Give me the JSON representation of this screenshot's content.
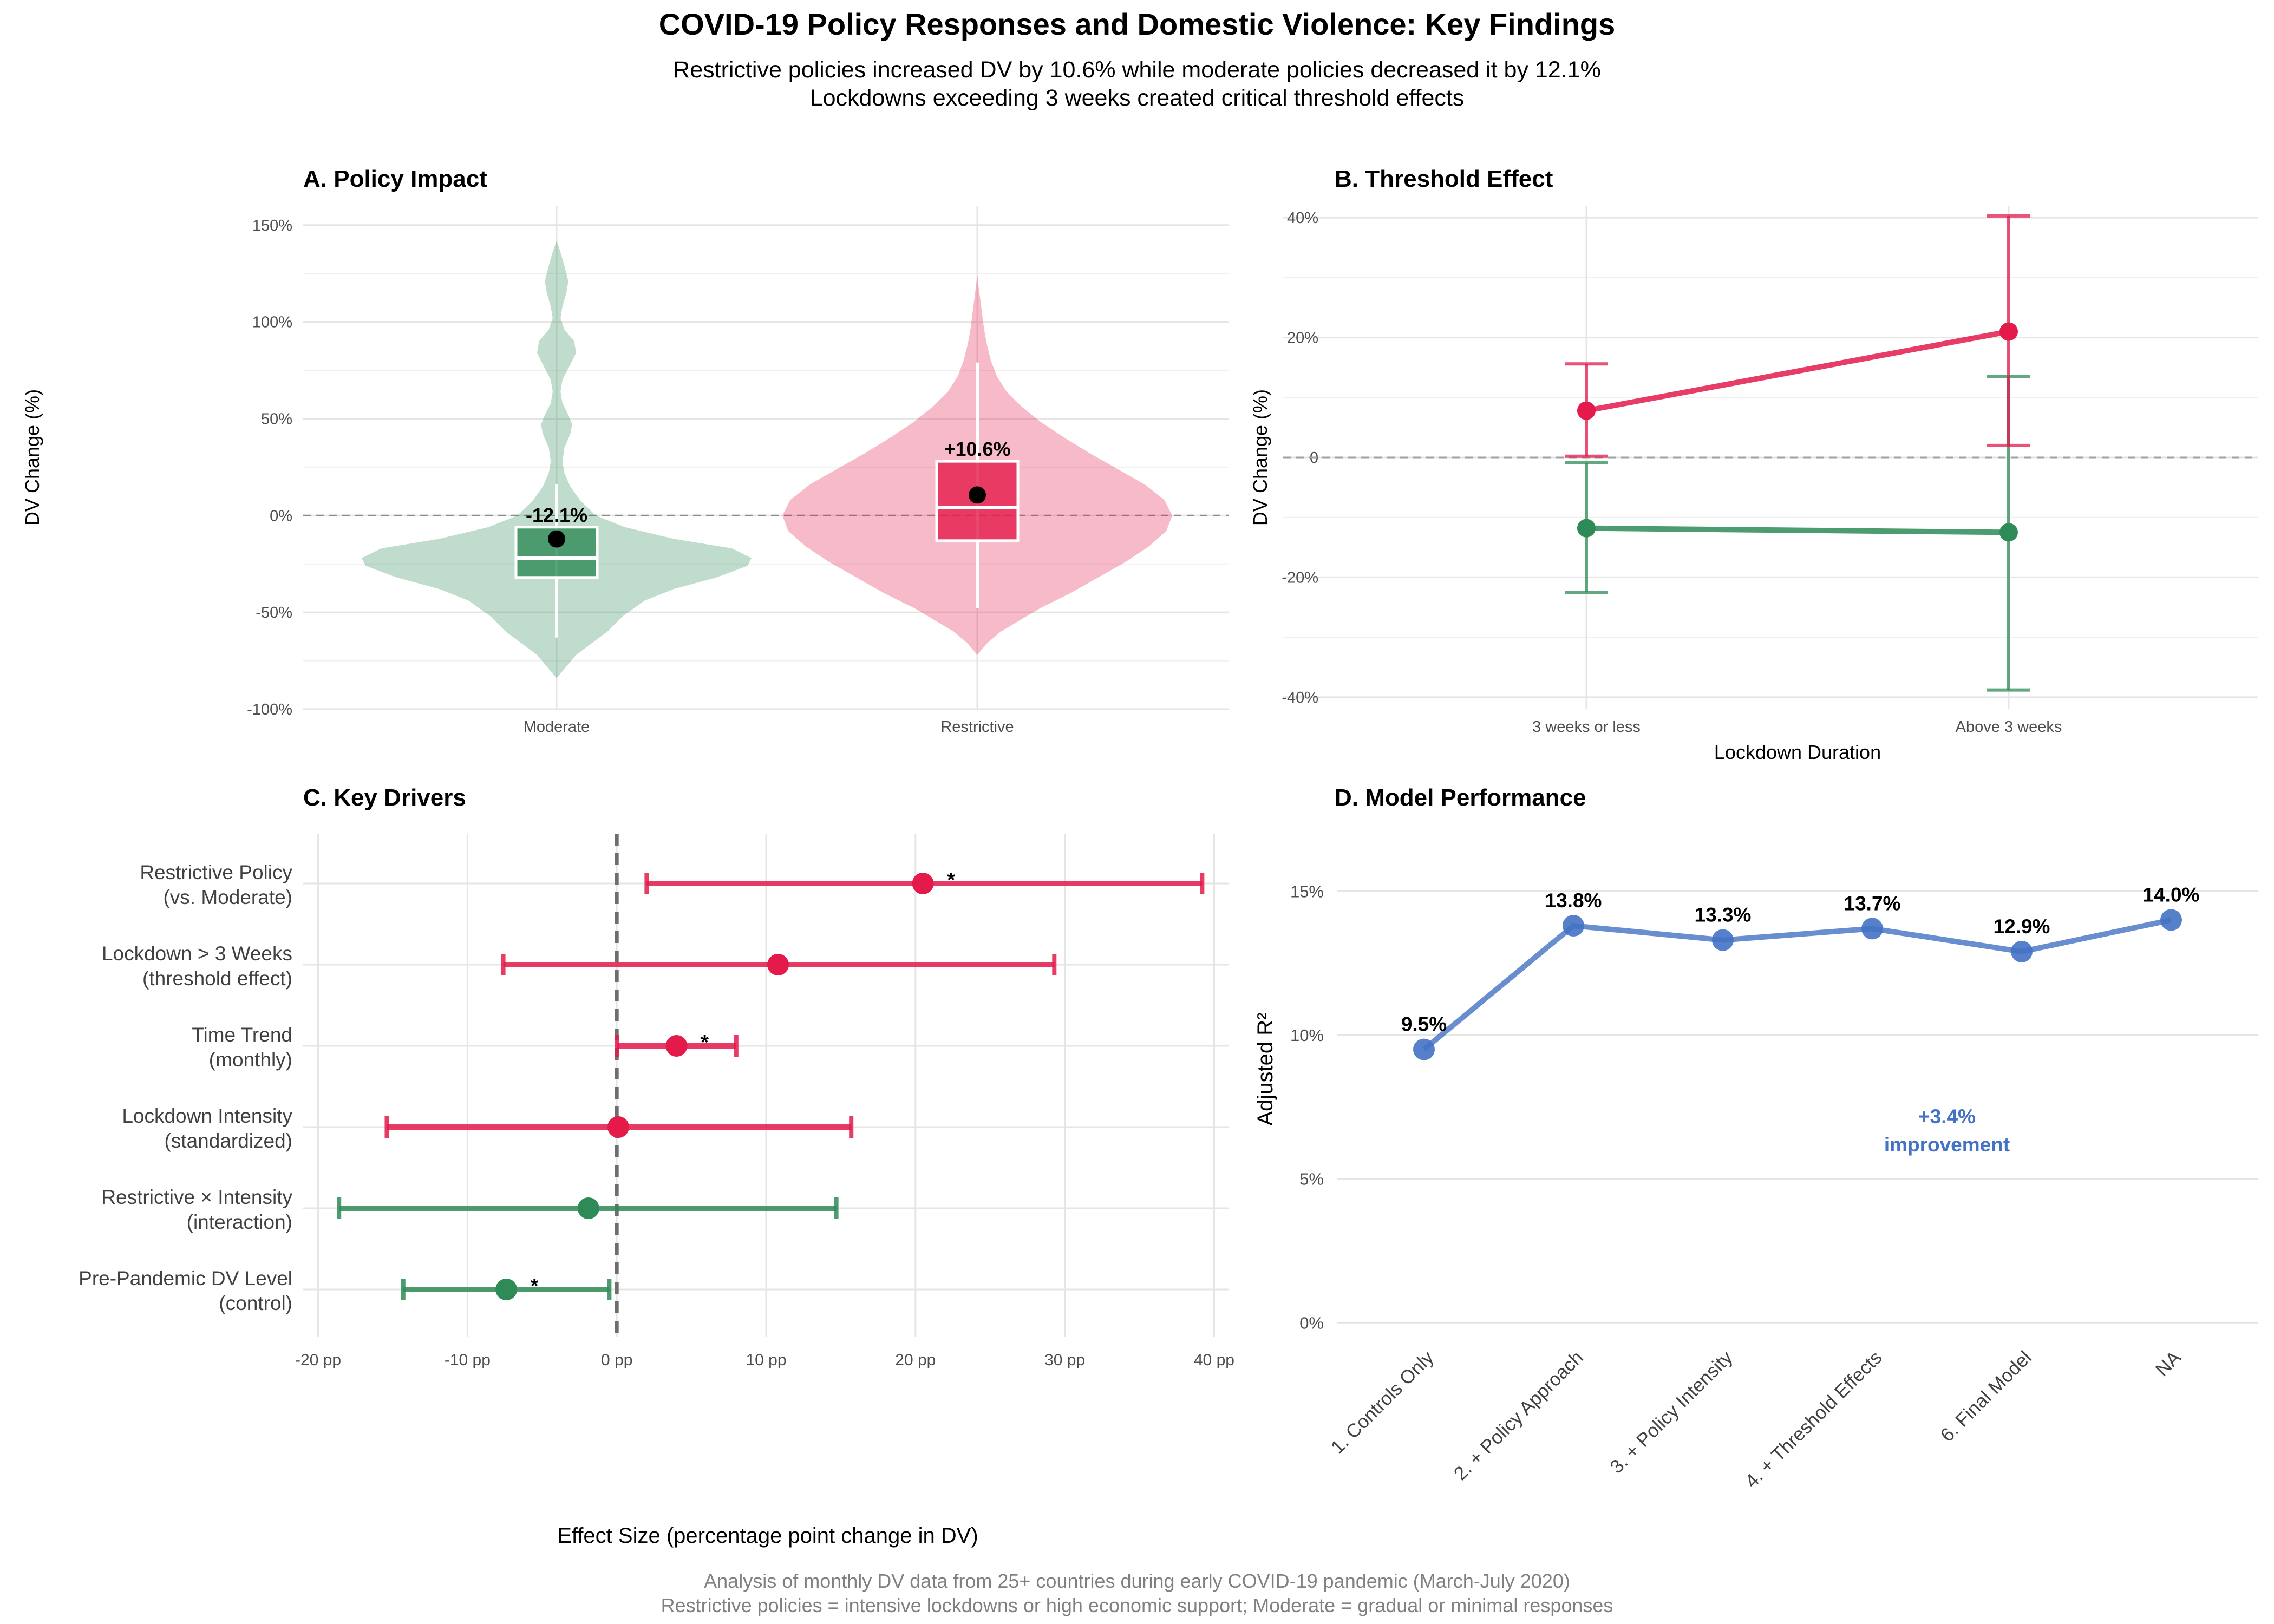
{
  "title": "COVID-19 Policy Responses and Domestic Violence: Key Findings",
  "subtitle_lines": [
    "Restrictive policies increased DV by 10.6% while moderate policies decreased it by 12.1%",
    "Lockdowns exceeding 3 weeks created critical threshold effects"
  ],
  "caption_lines": [
    "Analysis of monthly DV data from 25+ countries during early COVID-19 pandemic (March-July 2020)",
    "Restrictive policies = intensive lockdowns or high economic support; Moderate = gradual or minimal responses"
  ],
  "colors": {
    "moderate": "#2e8b57",
    "restrictive": "#e31a4a",
    "model": "#4472c4",
    "grid": "#e5e5e5",
    "text": "#000000",
    "axis_text": "#4d4d4d",
    "caption": "#808080"
  },
  "chart_data": [
    {
      "id": "A",
      "type": "violin",
      "title": "A. Policy Impact",
      "xlabel": "",
      "ylabel": "DV Change (%)",
      "ylim": [
        -100,
        160
      ],
      "yticks": [
        -100,
        -50,
        0,
        50,
        100,
        150
      ],
      "ytick_labels": [
        "-100%",
        "-50%",
        "0%",
        "50%",
        "100%",
        "150%"
      ],
      "categories": [
        "Moderate",
        "Restrictive"
      ],
      "reference_line": 0,
      "groups": [
        {
          "name": "Moderate",
          "color_key": "moderate",
          "mean": -12.1,
          "mean_label": "-12.1%",
          "box": {
            "q1": -32,
            "median": -22,
            "q3": -6,
            "whisker_low": -63,
            "whisker_high": 16
          },
          "density": [
            [
              -84,
              0.0
            ],
            [
              -78,
              0.05
            ],
            [
              -72,
              0.1
            ],
            [
              -66,
              0.18
            ],
            [
              -60,
              0.26
            ],
            [
              -52,
              0.34
            ],
            [
              -44,
              0.45
            ],
            [
              -38,
              0.6
            ],
            [
              -32,
              0.82
            ],
            [
              -26,
              0.98
            ],
            [
              -22,
              1.0
            ],
            [
              -17,
              0.9
            ],
            [
              -12,
              0.6
            ],
            [
              -6,
              0.35
            ],
            [
              0,
              0.2
            ],
            [
              8,
              0.12
            ],
            [
              15,
              0.07
            ],
            [
              22,
              0.04
            ],
            [
              28,
              0.03
            ],
            [
              35,
              0.04
            ],
            [
              42,
              0.07
            ],
            [
              47,
              0.08
            ],
            [
              52,
              0.06
            ],
            [
              58,
              0.03
            ],
            [
              64,
              0.02
            ],
            [
              70,
              0.03
            ],
            [
              76,
              0.06
            ],
            [
              84,
              0.1
            ],
            [
              90,
              0.09
            ],
            [
              96,
              0.04
            ],
            [
              102,
              0.02
            ],
            [
              108,
              0.03
            ],
            [
              115,
              0.05
            ],
            [
              121,
              0.06
            ],
            [
              129,
              0.04
            ],
            [
              136,
              0.02
            ],
            [
              142,
              0.0
            ]
          ]
        },
        {
          "name": "Restrictive",
          "color_key": "restrictive",
          "mean": 10.6,
          "mean_label": "+10.6%",
          "box": {
            "q1": -13,
            "median": 4,
            "q3": 28,
            "whisker_low": -48,
            "whisker_high": 79
          },
          "density": [
            [
              -72,
              0.0
            ],
            [
              -66,
              0.05
            ],
            [
              -60,
              0.12
            ],
            [
              -54,
              0.22
            ],
            [
              -48,
              0.32
            ],
            [
              -40,
              0.48
            ],
            [
              -32,
              0.62
            ],
            [
              -24,
              0.76
            ],
            [
              -16,
              0.88
            ],
            [
              -8,
              0.97
            ],
            [
              0,
              1.0
            ],
            [
              8,
              0.96
            ],
            [
              16,
              0.86
            ],
            [
              24,
              0.72
            ],
            [
              32,
              0.58
            ],
            [
              40,
              0.45
            ],
            [
              48,
              0.33
            ],
            [
              56,
              0.23
            ],
            [
              64,
              0.15
            ],
            [
              72,
              0.1
            ],
            [
              80,
              0.07
            ],
            [
              88,
              0.05
            ],
            [
              96,
              0.035
            ],
            [
              104,
              0.025
            ],
            [
              112,
              0.015
            ],
            [
              118,
              0.007
            ],
            [
              124,
              0.0
            ]
          ]
        }
      ]
    },
    {
      "id": "B",
      "type": "line",
      "title": "B. Threshold Effect",
      "xlabel": "Lockdown Duration",
      "ylabel": "DV Change (%)",
      "ylim": [
        -42,
        42
      ],
      "yticks": [
        -40,
        -20,
        0,
        20,
        40
      ],
      "ytick_labels": [
        "-40%",
        "-20%",
        "0",
        "20%",
        "40%"
      ],
      "categories": [
        "3 weeks or less",
        "Above 3 weeks"
      ],
      "reference_line": 0,
      "series": [
        {
          "color_key": "restrictive",
          "values": [
            7.8,
            21.0
          ],
          "lower": [
            0.2,
            2.0
          ],
          "upper": [
            15.6,
            40.3
          ]
        },
        {
          "color_key": "moderate",
          "values": [
            -11.8,
            -12.5
          ],
          "lower": [
            -22.5,
            -38.8
          ],
          "upper": [
            -0.9,
            13.5
          ]
        }
      ]
    },
    {
      "id": "C",
      "type": "forest",
      "title": "C. Key Drivers",
      "xlabel": "Effect Size (percentage point change in DV)",
      "ylabel": "",
      "xlim": [
        -21,
        41
      ],
      "xticks": [
        -20,
        -10,
        0,
        10,
        20,
        30,
        40
      ],
      "xtick_labels": [
        "-20 pp",
        "-10 pp",
        "0 pp",
        "10 pp",
        "20 pp",
        "30 pp",
        "40 pp"
      ],
      "reference_line": 0,
      "rows": [
        {
          "label": [
            "Restrictive Policy",
            "(vs. Moderate)"
          ],
          "estimate": 20.5,
          "lower": 2.0,
          "upper": 39.2,
          "significant": true,
          "color_key": "restrictive"
        },
        {
          "label": [
            "Lockdown > 3 Weeks",
            "(threshold effect)"
          ],
          "estimate": 10.8,
          "lower": -7.6,
          "upper": 29.3,
          "significant": false,
          "color_key": "restrictive"
        },
        {
          "label": [
            "Time Trend",
            "(monthly)"
          ],
          "estimate": 4.0,
          "lower": 0.0,
          "upper": 8.0,
          "significant": true,
          "color_key": "restrictive"
        },
        {
          "label": [
            "Lockdown Intensity",
            "(standardized)"
          ],
          "estimate": 0.1,
          "lower": -15.4,
          "upper": 15.7,
          "significant": false,
          "color_key": "restrictive"
        },
        {
          "label": [
            "Restrictive × Intensity",
            "(interaction)"
          ],
          "estimate": -1.9,
          "lower": -18.6,
          "upper": 14.7,
          "significant": false,
          "color_key": "moderate"
        },
        {
          "label": [
            "Pre-Pandemic DV Level",
            "(control)"
          ],
          "estimate": -7.4,
          "lower": -14.3,
          "upper": -0.5,
          "significant": true,
          "color_key": "moderate"
        }
      ],
      "significance_marker": "*"
    },
    {
      "id": "D",
      "type": "line",
      "title": "D. Model Performance",
      "xlabel": "",
      "ylabel": "Adjusted R²",
      "ylim": [
        -0.5,
        17
      ],
      "yticks": [
        0,
        5,
        10,
        15
      ],
      "ytick_labels": [
        "0%",
        "5%",
        "10%",
        "15%"
      ],
      "categories": [
        "1. Controls Only",
        "2. + Policy Approach",
        "3. + Policy Intensity",
        "4. + Threshold Effects",
        "6. Final Model",
        "NA"
      ],
      "values": [
        9.5,
        13.8,
        13.3,
        13.7,
        12.9,
        14.0
      ],
      "point_labels": [
        "9.5%",
        "13.8%",
        "13.3%",
        "13.7%",
        "12.9%",
        "14.0%"
      ],
      "annotation_lines": [
        "+3.4%",
        "improvement"
      ]
    }
  ]
}
